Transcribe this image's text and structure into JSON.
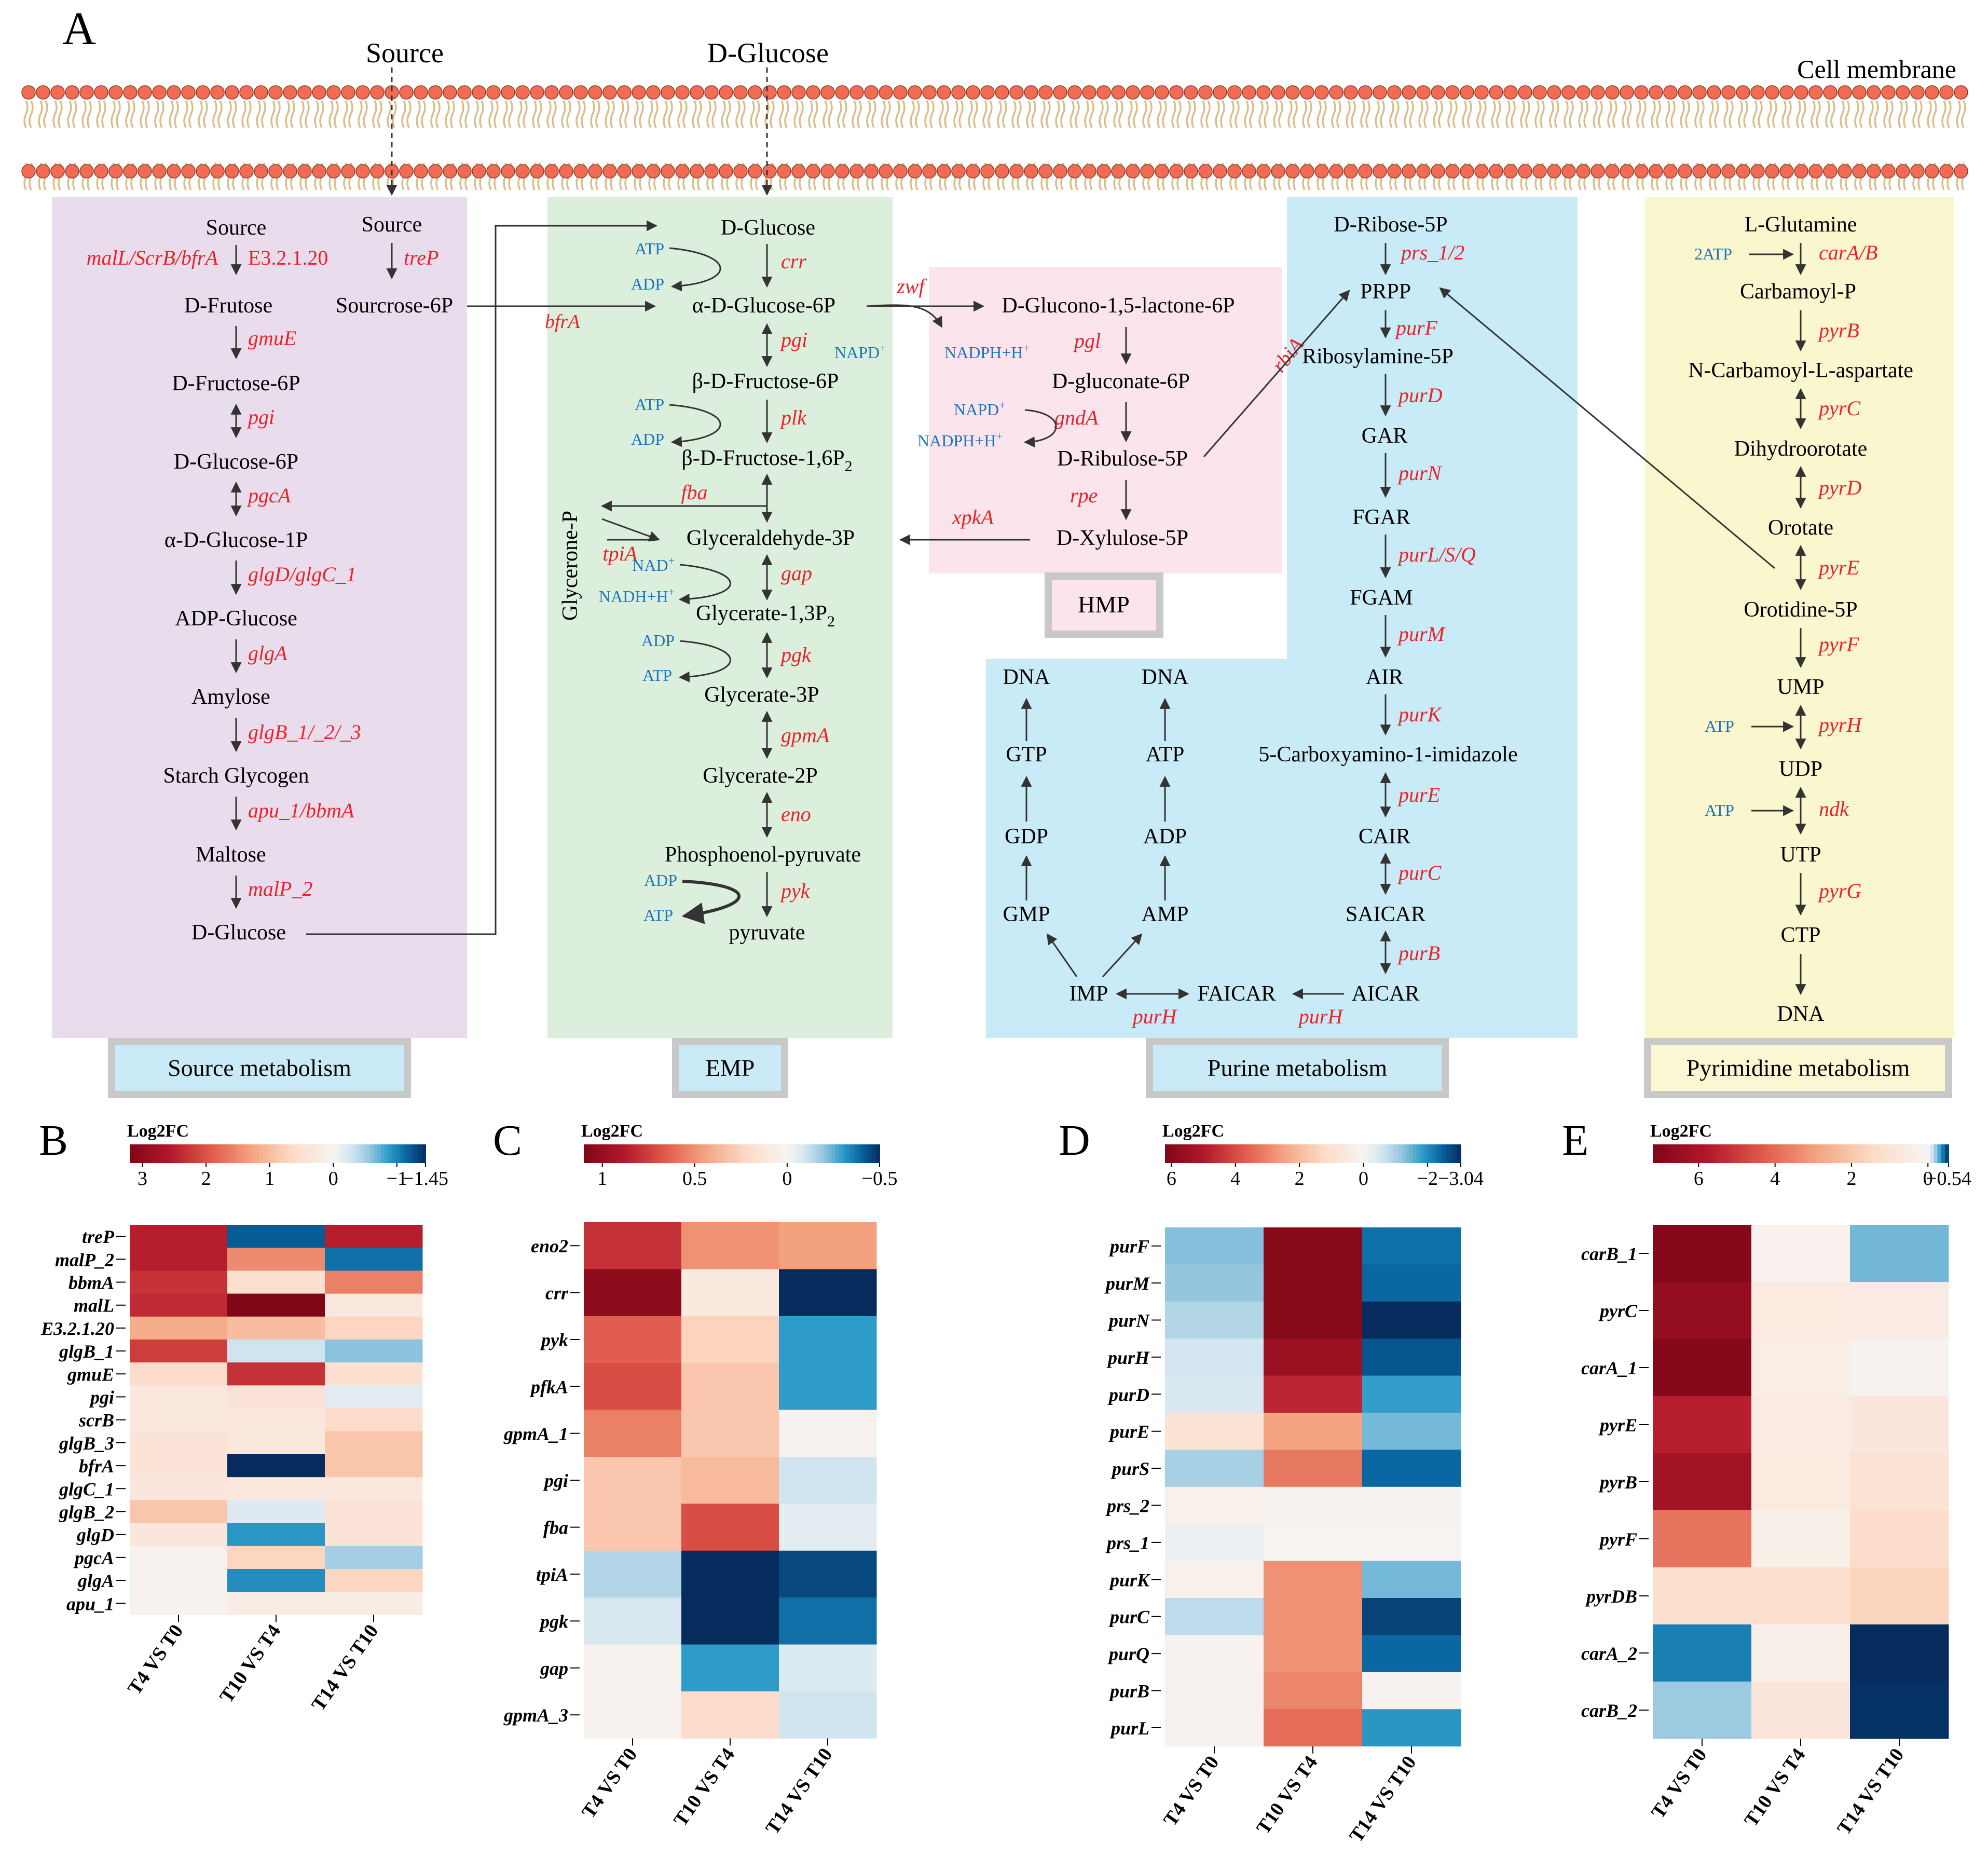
{
  "colors": {
    "membrane_head": "#F26B52",
    "membrane_tail": "#D9BE8A",
    "source_bg": "#E9DDED",
    "emp_bg": "#DCEFDC",
    "hmp_bg": "#FCE4EC",
    "purine_bg": "#C9EBF8",
    "pyrimidine_bg": "#FAF6CE",
    "enzyme": "#E8232A",
    "cofactor": "#1B75BC",
    "label_box_border": "#C8C8C8",
    "label_box_fill": "#CBEAF7",
    "pyrimidine_label_fill": "#FAF7D2"
  },
  "panel_a": {
    "letter": "A",
    "source_top": "Source",
    "glucose_top": "D-Glucose",
    "membrane": "Cell membrane",
    "section_labels": {
      "source": "Source metabolism",
      "emp": "EMP",
      "hmp": "HMP",
      "purine": "Purine metabolism",
      "pyrimidine": "Pyrimidine metabolism"
    },
    "source": {
      "metabolites": [
        "Source",
        "Source",
        "D-Frutose",
        "Sourcrose-6P",
        "D-Fructose-6P",
        "D-Glucose-6P",
        "α-D-Glucose-1P",
        "ADP-Glucose",
        "Amylose",
        "Starch Glycogen",
        "Maltose",
        "D-Glucose"
      ],
      "enzymes": [
        "malL/ScrB/bfrA",
        "E3.2.1.20",
        "treP",
        "gmuE",
        "pgi",
        "pgcA",
        "glgD/glgC_1",
        "glgA",
        "glgB_1/_2/_3",
        "apu_1/bbmA",
        "malP_2",
        "bfrA"
      ]
    },
    "emp": {
      "metabolites": [
        "D-Glucose",
        "α-D-Glucose-6P",
        "β-D-Fructose-6P",
        "β-D-Fructose-1,6P",
        "Glyceraldehyde-3P",
        "Glycerate-1,3P",
        "Glycerate-3P",
        "Glycerate-2P",
        "Phosphoenol-pyruvate",
        "pyruvate",
        "Glycerone-P"
      ],
      "enzymes": [
        "crr",
        "pgi",
        "plk",
        "fba",
        "tpiA",
        "gap",
        "pgk",
        "gpmA",
        "eno",
        "pyk",
        "zwf"
      ],
      "cofactors": [
        "ATP",
        "ADP",
        "ATP",
        "ADP",
        "NAD",
        "NADH+H",
        "ADP",
        "ATP",
        "ADP",
        "ATP"
      ],
      "subscript": "2",
      "superscript": "+"
    },
    "hmp": {
      "metabolites": [
        "D-Glucono-1,5-lactone-6P",
        "D-gluconate-6P",
        "D-Ribulose-5P",
        "D-Xylulose-5P"
      ],
      "enzymes": [
        "pgl",
        "gndA",
        "rpe",
        "xpkA",
        "rbiA"
      ],
      "cofactors": [
        "NAPD",
        "NADPH+H",
        "NAPD",
        "NADPH+H"
      ]
    },
    "purine": {
      "metabolites": [
        "D-Ribose-5P",
        "PRPP",
        "Ribosylamine-5P",
        "GAR",
        "FGAR",
        "FGAM",
        "AIR",
        "5-Carboxyamino-1-imidazole",
        "CAIR",
        "SAICAR",
        "AICAR",
        "FAICAR",
        "IMP",
        "GMP",
        "GDP",
        "GTP",
        "DNA",
        "AMP",
        "ADP",
        "ATP",
        "DNA"
      ],
      "enzymes": [
        "prs_1/2",
        "purF",
        "purD",
        "purN",
        "purL/S/Q",
        "purM",
        "purK",
        "purE",
        "purC",
        "purB",
        "purH",
        "purH"
      ]
    },
    "pyrimidine": {
      "metabolites": [
        "L-Glutamine",
        "Carbamoyl-P",
        "N-Carbamoyl-L-aspartate",
        "Dihydroorotate",
        "Orotate",
        "Orotidine-5P",
        "UMP",
        "UDP",
        "UTP",
        "CTP",
        "DNA"
      ],
      "enzymes": [
        "carA/B",
        "pyrB",
        "pyrC",
        "pyrD",
        "pyrE",
        "pyrF",
        "pyrH",
        "ndk",
        "pyrG"
      ],
      "cofactors": [
        "2ATP",
        "ATP",
        "ATP"
      ]
    }
  },
  "chart_data": [
    {
      "panel": "B",
      "type": "heatmap",
      "legend_title": "Log2FC",
      "range": [
        -1.45,
        3.2
      ],
      "ticks": [
        "3",
        "2",
        "1",
        "0",
        "−1",
        "−1.45"
      ],
      "tick_values": [
        3,
        2,
        1,
        0,
        -1,
        -1.45
      ],
      "columns": [
        "T4 VS T0",
        "T10 VS T4",
        "T14 VS T10"
      ],
      "rows": [
        "treP",
        "malP_2",
        "bbmA",
        "malL",
        "E3.2.1.20",
        "glgB_1",
        "gmuE",
        "pgi",
        "scrB",
        "glgB_3",
        "bfrA",
        "glgC_1",
        "glgB_2",
        "glgD",
        "pgcA",
        "glgA",
        "apu_1"
      ],
      "values": [
        [
          2.5,
          -1.2,
          2.5
        ],
        [
          2.5,
          1.5,
          -1.1
        ],
        [
          2.3,
          0.5,
          1.6
        ],
        [
          2.4,
          3.2,
          0.3
        ],
        [
          1.2,
          1.0,
          0.7
        ],
        [
          2.2,
          -0.3,
          -0.6
        ],
        [
          0.6,
          2.3,
          0.5
        ],
        [
          0.3,
          0.4,
          -0.15
        ],
        [
          0.3,
          0.3,
          0.6
        ],
        [
          0.4,
          0.3,
          0.9
        ],
        [
          0.4,
          -1.45,
          0.9
        ],
        [
          0.35,
          0.3,
          0.3
        ],
        [
          0.9,
          -0.2,
          0.4
        ],
        [
          0.35,
          -0.9,
          0.4
        ],
        [
          0.05,
          0.7,
          -0.5
        ],
        [
          0.05,
          -0.95,
          0.7
        ],
        [
          0.05,
          0.2,
          0.2
        ]
      ]
    },
    {
      "panel": "C",
      "type": "heatmap",
      "legend_title": "Log2FC",
      "range": [
        -0.5,
        1.1
      ],
      "ticks": [
        "1",
        "0.5",
        "0",
        "−0.5"
      ],
      "tick_values": [
        1,
        0.5,
        0,
        -0.5
      ],
      "columns": [
        "T4 VS T0",
        "T10 VS T4",
        "T14 VS T10"
      ],
      "rows": [
        "eno2",
        "crr",
        "pyk",
        "pfkA",
        "gpmA_1",
        "pgi",
        "fba",
        "tpiA",
        "pgk",
        "gap",
        "gpmA_3"
      ],
      "values": [
        [
          0.8,
          0.5,
          0.45
        ],
        [
          1.05,
          0.1,
          -0.5
        ],
        [
          0.65,
          0.25,
          -0.3
        ],
        [
          0.7,
          0.3,
          -0.3
        ],
        [
          0.55,
          0.3,
          0.02
        ],
        [
          0.3,
          0.35,
          -0.1
        ],
        [
          0.3,
          0.7,
          -0.05
        ],
        [
          -0.15,
          -0.5,
          -0.45
        ],
        [
          -0.08,
          -0.5,
          -0.38
        ],
        [
          0.02,
          -0.3,
          -0.07
        ],
        [
          0.02,
          0.2,
          -0.1
        ]
      ]
    },
    {
      "panel": "D",
      "type": "heatmap",
      "legend_title": "Log2FC",
      "range": [
        -3.04,
        6.2
      ],
      "ticks": [
        "6",
        "4",
        "2",
        "0",
        "−2",
        "−3.04"
      ],
      "tick_values": [
        6,
        4,
        2,
        0,
        -2,
        -3.04
      ],
      "columns": [
        "T4 VS T0",
        "T10 VS T4",
        "T14 VS T10"
      ],
      "rows": [
        "purF",
        "purM",
        "purN",
        "purH",
        "purD",
        "purE",
        "purS",
        "prs_2",
        "prs_1",
        "purK",
        "purC",
        "purQ",
        "purB",
        "purL"
      ],
      "values": [
        [
          -1.3,
          6.0,
          -2.3
        ],
        [
          -1.2,
          6.0,
          -2.4
        ],
        [
          -0.9,
          6.0,
          -3.04
        ],
        [
          -0.6,
          5.5,
          -2.6
        ],
        [
          -0.5,
          4.7,
          -1.8
        ],
        [
          0.8,
          2.5,
          -1.4
        ],
        [
          -1.0,
          3.2,
          -2.4
        ],
        [
          0.2,
          0.1,
          0.1
        ],
        [
          -0.2,
          0.05,
          0.05
        ],
        [
          0.2,
          2.8,
          -1.4
        ],
        [
          -0.8,
          2.8,
          -2.8
        ],
        [
          0.1,
          2.8,
          -2.4
        ],
        [
          0.1,
          3.0,
          0.1
        ],
        [
          0.1,
          3.4,
          -1.9
        ]
      ]
    },
    {
      "panel": "E",
      "type": "heatmap",
      "legend_title": "Log2FC",
      "range": [
        -0.54,
        7.2
      ],
      "ticks": [
        "6",
        "4",
        "2",
        "0",
        "−0.54"
      ],
      "tick_values": [
        6,
        4,
        2,
        0,
        -0.54
      ],
      "columns": [
        "T4 VS T0",
        "T10 VS T4",
        "T14 VS T10"
      ],
      "rows": [
        "carB_1",
        "pyrC",
        "carA_1",
        "pyrE",
        "pyrB",
        "pyrF",
        "pyrDB",
        "carA_2",
        "carB_2"
      ],
      "values": [
        [
          7.0,
          0.15,
          -0.25
        ],
        [
          6.6,
          0.6,
          0.5
        ],
        [
          7.0,
          0.4,
          0.1
        ],
        [
          5.6,
          0.5,
          0.8
        ],
        [
          6.2,
          0.6,
          1.0
        ],
        [
          3.8,
          0.3,
          1.3
        ],
        [
          1.2,
          1.2,
          1.6
        ],
        [
          -0.38,
          0.3,
          -0.54
        ],
        [
          -0.2,
          0.8,
          -0.53
        ]
      ]
    }
  ]
}
